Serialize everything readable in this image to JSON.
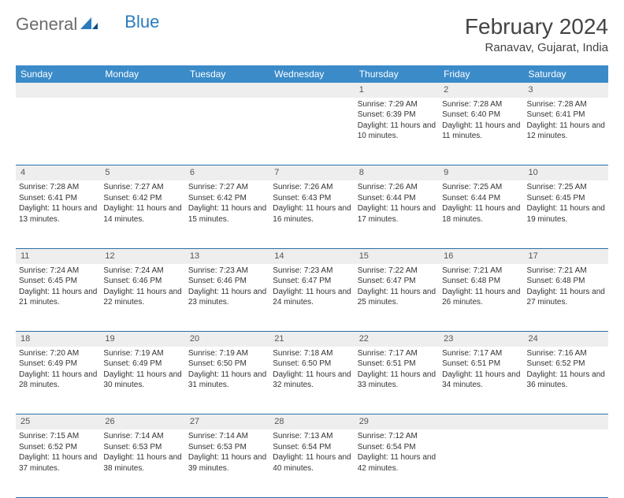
{
  "logo": {
    "part1": "General",
    "part2": "Blue"
  },
  "title": "February 2024",
  "location": "Ranavav, Gujarat, India",
  "colors": {
    "header_bg": "#3b8bc9",
    "header_text": "#ffffff",
    "daynum_bg": "#eeeeee",
    "row_border": "#2a6fa8",
    "text": "#333333",
    "logo_gray": "#6b6b6b",
    "logo_blue": "#2a7bbf"
  },
  "weekdays": [
    "Sunday",
    "Monday",
    "Tuesday",
    "Wednesday",
    "Thursday",
    "Friday",
    "Saturday"
  ],
  "weeks": [
    {
      "days": [
        {
          "num": "",
          "sunrise": "",
          "sunset": "",
          "daylight": ""
        },
        {
          "num": "",
          "sunrise": "",
          "sunset": "",
          "daylight": ""
        },
        {
          "num": "",
          "sunrise": "",
          "sunset": "",
          "daylight": ""
        },
        {
          "num": "",
          "sunrise": "",
          "sunset": "",
          "daylight": ""
        },
        {
          "num": "1",
          "sunrise": "Sunrise: 7:29 AM",
          "sunset": "Sunset: 6:39 PM",
          "daylight": "Daylight: 11 hours and 10 minutes."
        },
        {
          "num": "2",
          "sunrise": "Sunrise: 7:28 AM",
          "sunset": "Sunset: 6:40 PM",
          "daylight": "Daylight: 11 hours and 11 minutes."
        },
        {
          "num": "3",
          "sunrise": "Sunrise: 7:28 AM",
          "sunset": "Sunset: 6:41 PM",
          "daylight": "Daylight: 11 hours and 12 minutes."
        }
      ]
    },
    {
      "days": [
        {
          "num": "4",
          "sunrise": "Sunrise: 7:28 AM",
          "sunset": "Sunset: 6:41 PM",
          "daylight": "Daylight: 11 hours and 13 minutes."
        },
        {
          "num": "5",
          "sunrise": "Sunrise: 7:27 AM",
          "sunset": "Sunset: 6:42 PM",
          "daylight": "Daylight: 11 hours and 14 minutes."
        },
        {
          "num": "6",
          "sunrise": "Sunrise: 7:27 AM",
          "sunset": "Sunset: 6:42 PM",
          "daylight": "Daylight: 11 hours and 15 minutes."
        },
        {
          "num": "7",
          "sunrise": "Sunrise: 7:26 AM",
          "sunset": "Sunset: 6:43 PM",
          "daylight": "Daylight: 11 hours and 16 minutes."
        },
        {
          "num": "8",
          "sunrise": "Sunrise: 7:26 AM",
          "sunset": "Sunset: 6:44 PM",
          "daylight": "Daylight: 11 hours and 17 minutes."
        },
        {
          "num": "9",
          "sunrise": "Sunrise: 7:25 AM",
          "sunset": "Sunset: 6:44 PM",
          "daylight": "Daylight: 11 hours and 18 minutes."
        },
        {
          "num": "10",
          "sunrise": "Sunrise: 7:25 AM",
          "sunset": "Sunset: 6:45 PM",
          "daylight": "Daylight: 11 hours and 19 minutes."
        }
      ]
    },
    {
      "days": [
        {
          "num": "11",
          "sunrise": "Sunrise: 7:24 AM",
          "sunset": "Sunset: 6:45 PM",
          "daylight": "Daylight: 11 hours and 21 minutes."
        },
        {
          "num": "12",
          "sunrise": "Sunrise: 7:24 AM",
          "sunset": "Sunset: 6:46 PM",
          "daylight": "Daylight: 11 hours and 22 minutes."
        },
        {
          "num": "13",
          "sunrise": "Sunrise: 7:23 AM",
          "sunset": "Sunset: 6:46 PM",
          "daylight": "Daylight: 11 hours and 23 minutes."
        },
        {
          "num": "14",
          "sunrise": "Sunrise: 7:23 AM",
          "sunset": "Sunset: 6:47 PM",
          "daylight": "Daylight: 11 hours and 24 minutes."
        },
        {
          "num": "15",
          "sunrise": "Sunrise: 7:22 AM",
          "sunset": "Sunset: 6:47 PM",
          "daylight": "Daylight: 11 hours and 25 minutes."
        },
        {
          "num": "16",
          "sunrise": "Sunrise: 7:21 AM",
          "sunset": "Sunset: 6:48 PM",
          "daylight": "Daylight: 11 hours and 26 minutes."
        },
        {
          "num": "17",
          "sunrise": "Sunrise: 7:21 AM",
          "sunset": "Sunset: 6:48 PM",
          "daylight": "Daylight: 11 hours and 27 minutes."
        }
      ]
    },
    {
      "days": [
        {
          "num": "18",
          "sunrise": "Sunrise: 7:20 AM",
          "sunset": "Sunset: 6:49 PM",
          "daylight": "Daylight: 11 hours and 28 minutes."
        },
        {
          "num": "19",
          "sunrise": "Sunrise: 7:19 AM",
          "sunset": "Sunset: 6:49 PM",
          "daylight": "Daylight: 11 hours and 30 minutes."
        },
        {
          "num": "20",
          "sunrise": "Sunrise: 7:19 AM",
          "sunset": "Sunset: 6:50 PM",
          "daylight": "Daylight: 11 hours and 31 minutes."
        },
        {
          "num": "21",
          "sunrise": "Sunrise: 7:18 AM",
          "sunset": "Sunset: 6:50 PM",
          "daylight": "Daylight: 11 hours and 32 minutes."
        },
        {
          "num": "22",
          "sunrise": "Sunrise: 7:17 AM",
          "sunset": "Sunset: 6:51 PM",
          "daylight": "Daylight: 11 hours and 33 minutes."
        },
        {
          "num": "23",
          "sunrise": "Sunrise: 7:17 AM",
          "sunset": "Sunset: 6:51 PM",
          "daylight": "Daylight: 11 hours and 34 minutes."
        },
        {
          "num": "24",
          "sunrise": "Sunrise: 7:16 AM",
          "sunset": "Sunset: 6:52 PM",
          "daylight": "Daylight: 11 hours and 36 minutes."
        }
      ]
    },
    {
      "days": [
        {
          "num": "25",
          "sunrise": "Sunrise: 7:15 AM",
          "sunset": "Sunset: 6:52 PM",
          "daylight": "Daylight: 11 hours and 37 minutes."
        },
        {
          "num": "26",
          "sunrise": "Sunrise: 7:14 AM",
          "sunset": "Sunset: 6:53 PM",
          "daylight": "Daylight: 11 hours and 38 minutes."
        },
        {
          "num": "27",
          "sunrise": "Sunrise: 7:14 AM",
          "sunset": "Sunset: 6:53 PM",
          "daylight": "Daylight: 11 hours and 39 minutes."
        },
        {
          "num": "28",
          "sunrise": "Sunrise: 7:13 AM",
          "sunset": "Sunset: 6:54 PM",
          "daylight": "Daylight: 11 hours and 40 minutes."
        },
        {
          "num": "29",
          "sunrise": "Sunrise: 7:12 AM",
          "sunset": "Sunset: 6:54 PM",
          "daylight": "Daylight: 11 hours and 42 minutes."
        },
        {
          "num": "",
          "sunrise": "",
          "sunset": "",
          "daylight": ""
        },
        {
          "num": "",
          "sunrise": "",
          "sunset": "",
          "daylight": ""
        }
      ]
    }
  ]
}
